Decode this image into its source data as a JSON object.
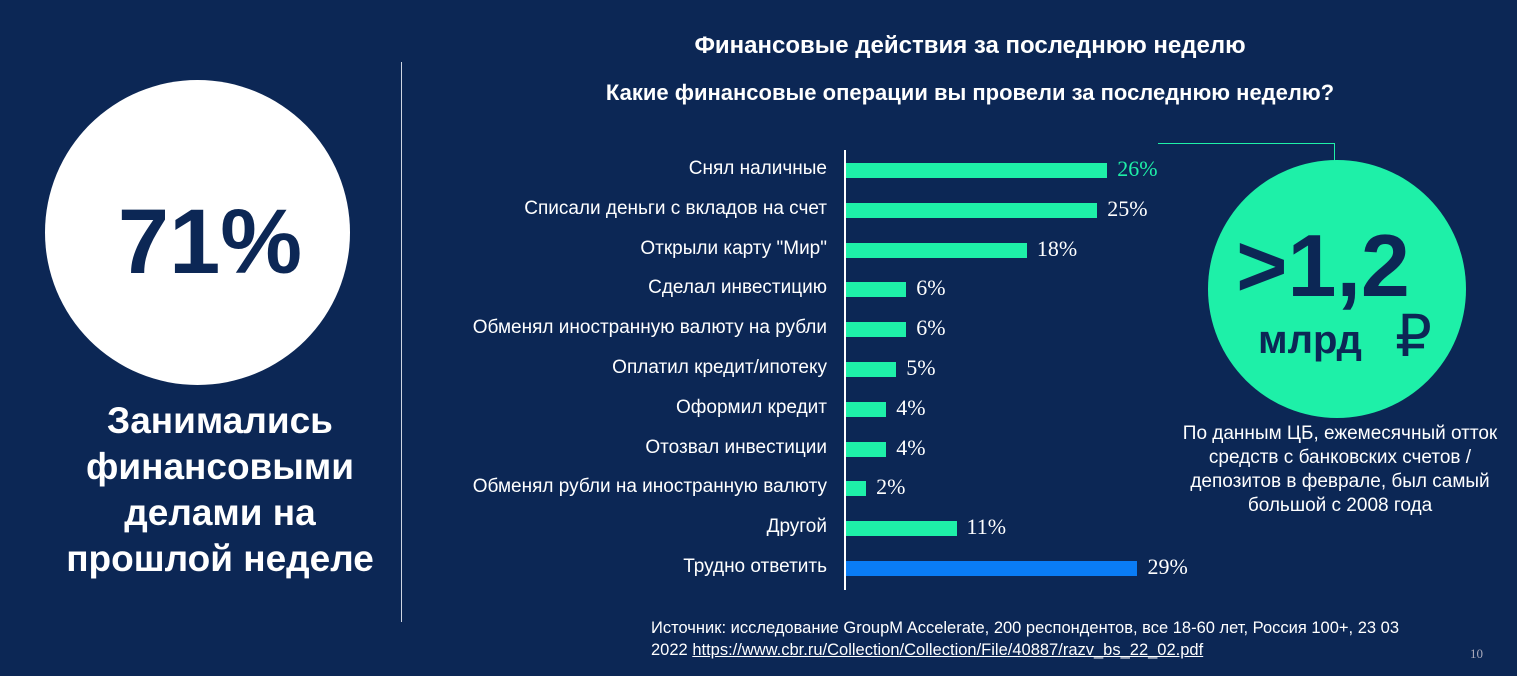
{
  "left_panel": {
    "big_value": "71%",
    "caption": "Занимались финансовыми делами на прошлой неделе"
  },
  "title": "Финансовые действия за последнюю неделю",
  "subtitle": "Какие финансовые операции вы провели за последнюю неделю?",
  "colors": {
    "background": "#0c2755",
    "bar": "#1ef0a8",
    "bar_highlight": "#0a7cf5"
  },
  "chart_data": {
    "type": "bar",
    "orientation": "horizontal",
    "title": "Какие финансовые операции вы провели за последнюю неделю?",
    "categories": [
      "Снял наличные",
      "Списали деньги с вкладов на счет",
      "Открыли карту \"Мир\"",
      "Сделал инвестицию",
      "Обменял иностранную валюту на рубли",
      "Оплатил кредит/ипотеку",
      "Оформил кредит",
      "Отозвал инвестиции",
      "Обменял рубли на иностранную валюту",
      "Другой",
      "Трудно ответить"
    ],
    "values": [
      26,
      25,
      18,
      6,
      6,
      5,
      4,
      4,
      2,
      11,
      29
    ],
    "labels": [
      "26%",
      "25%",
      "18%",
      "6%",
      "6%",
      "5%",
      "4%",
      "4%",
      "2%",
      "11%",
      "29%"
    ],
    "unit": "%",
    "xlim": [
      0,
      30
    ],
    "grid": false
  },
  "callout": {
    "value": ">1,2",
    "unit": "млрд",
    "currency_symbol": "₽",
    "note": "По данным ЦБ, ежемесячный отток средств с банковских счетов / депозитов в феврале, был самый большой с 2008 года"
  },
  "source": {
    "text": "Источник: исследование GroupM Accelerate, 200 респондентов, все 18-60 лет, Россия 100+, 23 03 2022",
    "link": "https://www.cbr.ru/Collection/Collection/File/40887/razv_bs_22_02.pdf"
  },
  "page_number": "10"
}
